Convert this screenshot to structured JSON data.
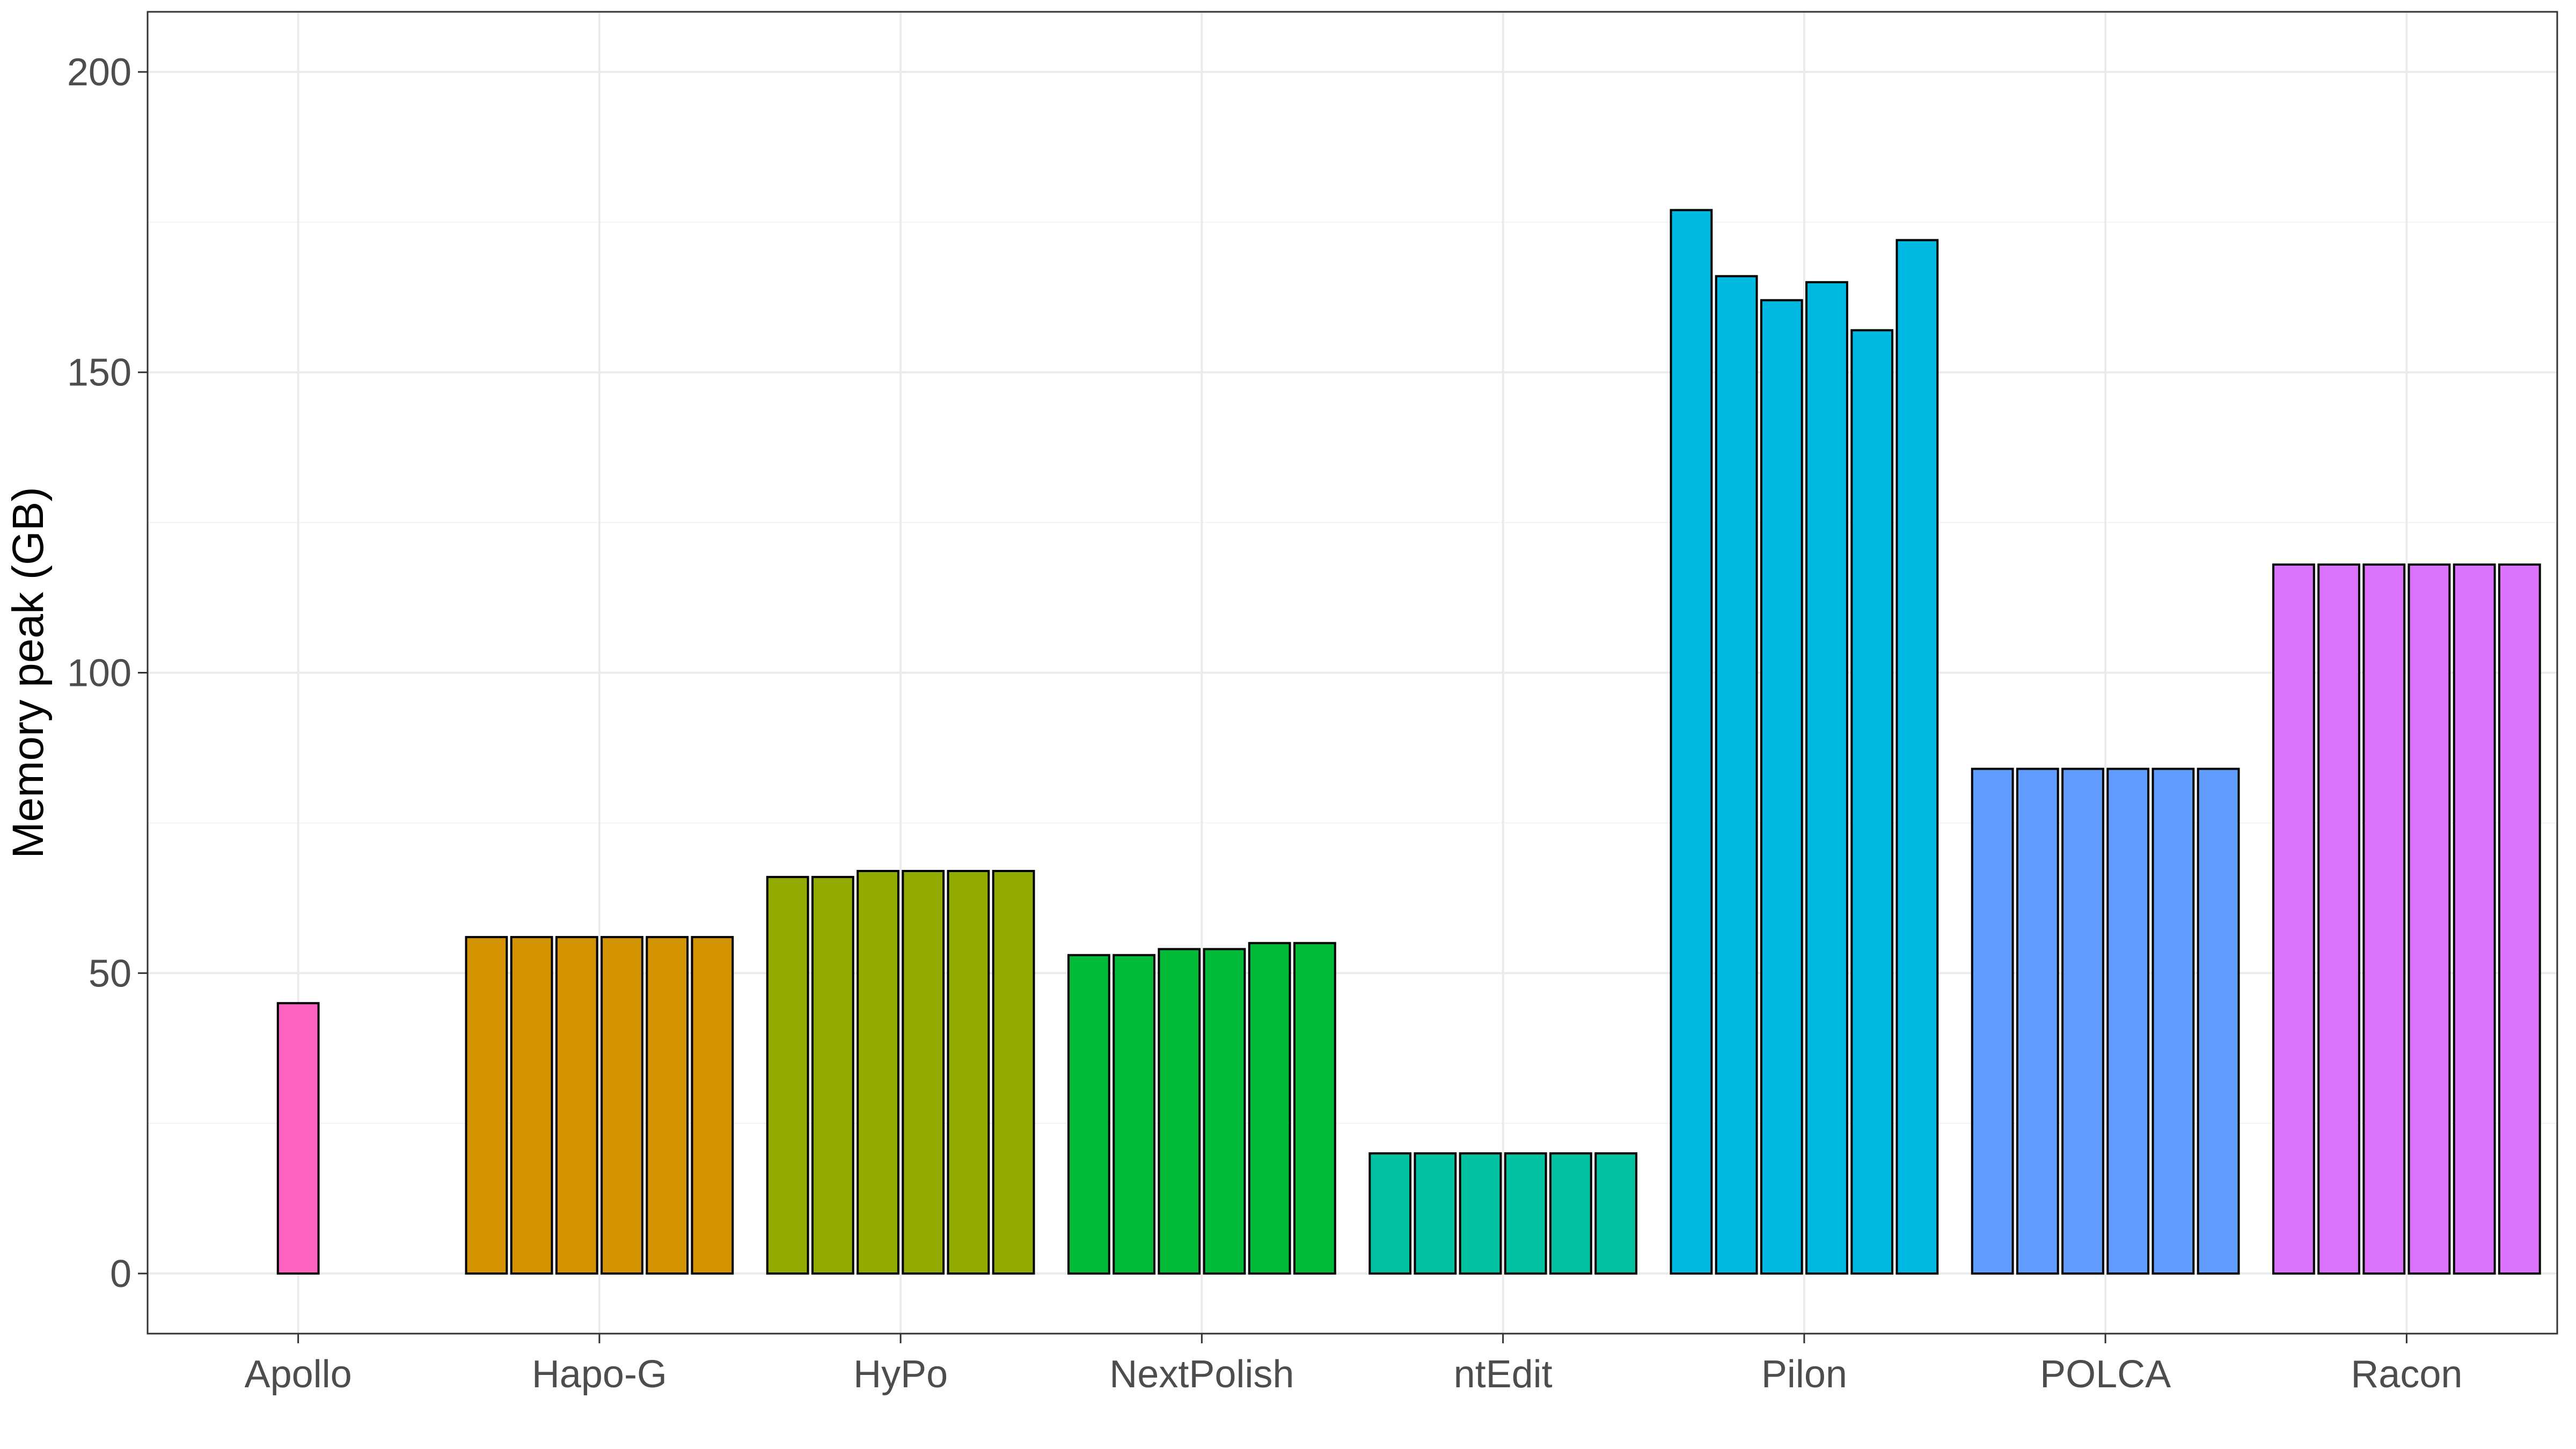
{
  "chart_data": {
    "type": "bar",
    "title": "",
    "xlabel": "",
    "ylabel": "Memory peak (GB)",
    "ylim": [
      -10,
      210
    ],
    "yticks": [
      0,
      50,
      100,
      150,
      200
    ],
    "grid": true,
    "legend": "none",
    "categories": [
      "Apollo",
      "Hapo-G",
      "HyPo",
      "NextPolish",
      "ntEdit",
      "Pilon",
      "POLCA",
      "Racon"
    ],
    "colors": [
      "#FF61C3",
      "#D39200",
      "#93AA00",
      "#00BA38",
      "#00C19F",
      "#00B9E3",
      "#619CFF",
      "#DB72FB"
    ],
    "groups": [
      {
        "tool": "Apollo",
        "values": [
          45
        ]
      },
      {
        "tool": "Hapo-G",
        "values": [
          56,
          56,
          56,
          56,
          56,
          56
        ]
      },
      {
        "tool": "HyPo",
        "values": [
          66,
          66,
          67,
          67,
          67,
          67
        ]
      },
      {
        "tool": "NextPolish",
        "values": [
          53,
          53,
          54,
          54,
          55,
          55
        ]
      },
      {
        "tool": "ntEdit",
        "values": [
          20,
          20,
          20,
          20,
          20,
          20
        ]
      },
      {
        "tool": "Pilon",
        "values": [
          177,
          166,
          162,
          165,
          157,
          172
        ]
      },
      {
        "tool": "POLCA",
        "values": [
          84,
          84,
          84,
          84,
          84,
          84
        ]
      },
      {
        "tool": "Racon",
        "values": [
          118,
          118,
          118,
          118,
          118,
          118
        ]
      }
    ]
  }
}
